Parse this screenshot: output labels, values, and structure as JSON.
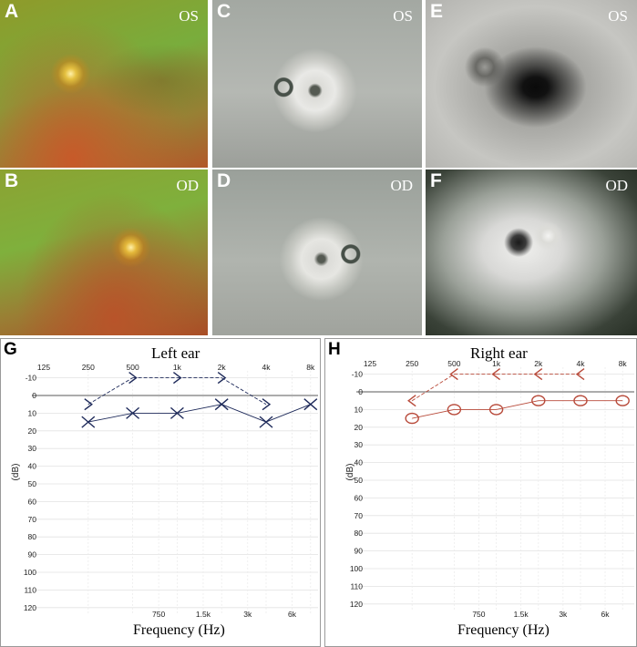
{
  "panels": [
    {
      "letter": "A",
      "eye": "OS"
    },
    {
      "letter": "B",
      "eye": "OD"
    },
    {
      "letter": "C",
      "eye": "OS"
    },
    {
      "letter": "D",
      "eye": "OD"
    },
    {
      "letter": "E",
      "eye": "OS"
    },
    {
      "letter": "F",
      "eye": "OD"
    }
  ],
  "chart_data": [
    {
      "type": "scatter",
      "panel_letter": "G",
      "title": "Left ear",
      "xlabel": "Frequency (Hz)",
      "ylabel": "(dB)",
      "x_ticks_top": [
        "125",
        "250",
        "500",
        "1k",
        "2k",
        "4k",
        "8k"
      ],
      "x_ticks_bottom": [
        "750",
        "1.5k",
        "3k",
        "6k"
      ],
      "y_ticks": [
        "-10",
        "0",
        "10",
        "20",
        "30",
        "40",
        "50",
        "60",
        "70",
        "80",
        "90",
        "100",
        "110",
        "120"
      ],
      "ylim": [
        -15,
        125
      ],
      "y_reversed": true,
      "grid": true,
      "series": [
        {
          "marker": "bone-conduction",
          "frequencies": [
            250,
            500,
            1000,
            2000,
            4000
          ],
          "values": [
            5,
            -10,
            -10,
            -10,
            5
          ],
          "color": "#1e2a5a"
        },
        {
          "marker": "air-conduction",
          "frequencies": [
            250,
            500,
            1000,
            2000,
            4000,
            8000
          ],
          "values": [
            15,
            10,
            10,
            5,
            15,
            5
          ],
          "color": "#1e2a5a"
        }
      ]
    },
    {
      "type": "scatter",
      "panel_letter": "H",
      "title": "Right ear",
      "xlabel": "Frequency (Hz)",
      "ylabel": "(dB)",
      "x_ticks_top": [
        "125",
        "250",
        "500",
        "1k",
        "2k",
        "4k",
        "8k"
      ],
      "x_ticks_bottom": [
        "750",
        "1.5k",
        "3k",
        "6k"
      ],
      "y_ticks": [
        "-10",
        "0",
        "10",
        "20",
        "30",
        "40",
        "50",
        "60",
        "70",
        "80",
        "90",
        "100",
        "110",
        "120"
      ],
      "ylim": [
        -15,
        125
      ],
      "y_reversed": true,
      "grid": true,
      "series": [
        {
          "marker": "bone-conduction",
          "frequencies": [
            250,
            500,
            1000,
            2000,
            4000
          ],
          "values": [
            5,
            -10,
            -10,
            -10,
            -10
          ],
          "color": "#b84a3a"
        },
        {
          "marker": "air-conduction",
          "frequencies": [
            250,
            500,
            1000,
            2000,
            4000,
            8000
          ],
          "values": [
            15,
            10,
            10,
            5,
            5,
            5
          ],
          "color": "#b84a3a"
        }
      ]
    }
  ]
}
